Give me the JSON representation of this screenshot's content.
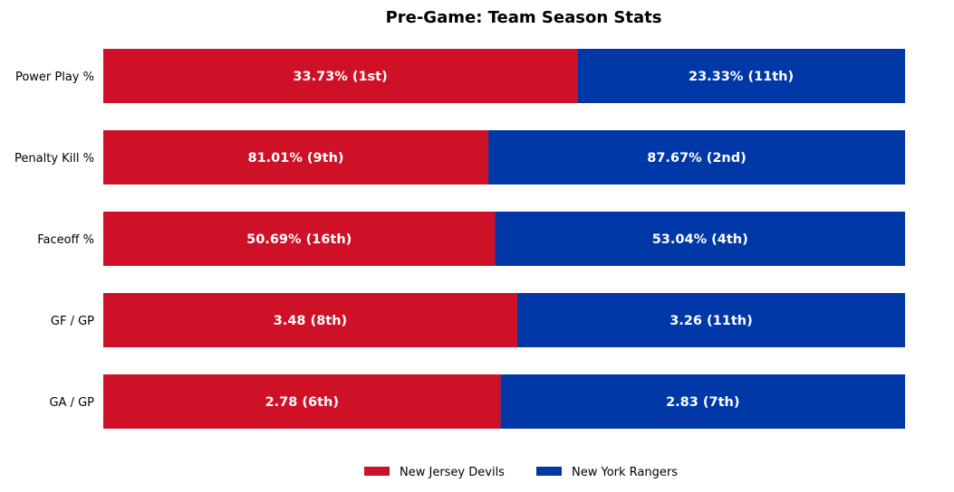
{
  "chart_data": {
    "type": "bar",
    "orientation": "horizontal-stacked-100",
    "title": "Pre-Game: Team Season Stats",
    "categories": [
      "Power Play %",
      "Penalty Kill %",
      "Faceoff %",
      "GF / GP",
      "GA / GP"
    ],
    "series": [
      {
        "name": "New Jersey Devils",
        "color": "#ce1126",
        "values": [
          33.73,
          81.01,
          50.69,
          3.48,
          2.78
        ],
        "labels": [
          "33.73% (1st)",
          "81.01% (9th)",
          "50.69% (16th)",
          "3.48 (8th)",
          "2.78 (6th)"
        ]
      },
      {
        "name": "New York Rangers",
        "color": "#0038a8",
        "values": [
          23.33,
          87.67,
          53.04,
          3.26,
          2.83
        ],
        "labels": [
          "23.33% (11th)",
          "87.67% (2nd)",
          "53.04% (4th)",
          "3.26 (11th)",
          "2.83 (7th)"
        ]
      }
    ],
    "legend": "bottom-center",
    "grid": false
  }
}
